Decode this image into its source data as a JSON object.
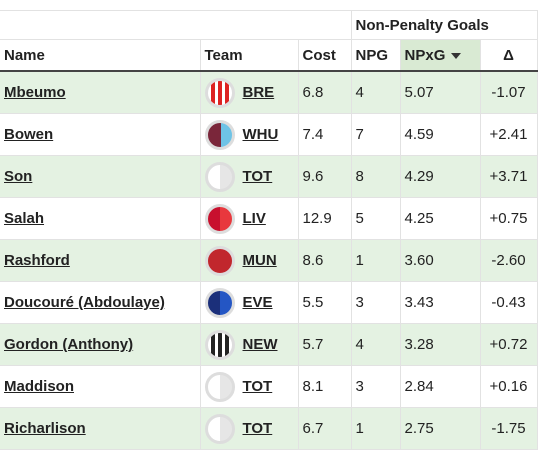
{
  "table": {
    "group_header": "Non-Penalty Goals",
    "columns": [
      "Name",
      "Team",
      "Cost",
      "NPG",
      "NPxG",
      "Δ"
    ],
    "rows": [
      [
        "Mbeumo",
        "BRE",
        "6.8",
        "4",
        "5.07",
        "-1.07"
      ],
      [
        "Bowen",
        "WHU",
        "7.4",
        "7",
        "4.59",
        "+2.41"
      ],
      [
        "Son",
        "TOT",
        "9.6",
        "8",
        "4.29",
        "+3.71"
      ],
      [
        "Salah",
        "LIV",
        "12.9",
        "5",
        "4.25",
        "+0.75"
      ],
      [
        "Rashford",
        "MUN",
        "8.6",
        "1",
        "3.60",
        "-2.60"
      ],
      [
        "Doucouré (Abdoulaye)",
        "EVE",
        "5.5",
        "3",
        "3.43",
        "-0.43"
      ],
      [
        "Gordon (Anthony)",
        "NEW",
        "5.7",
        "4",
        "3.28",
        "+0.72"
      ],
      [
        "Maddison",
        "TOT",
        "8.1",
        "3",
        "2.84",
        "+0.16"
      ],
      [
        "Richarlison",
        "TOT",
        "6.7",
        "1",
        "2.75",
        "-1.75"
      ]
    ]
  }
}
